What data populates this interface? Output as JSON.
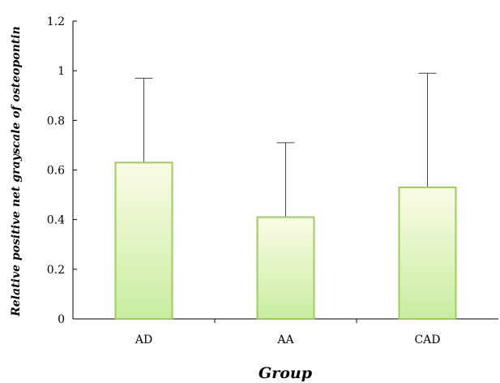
{
  "chart_data": {
    "type": "bar",
    "title": "",
    "xlabel": "Group",
    "ylabel": "Relative positive net grayscale of osteopontin",
    "categories": [
      "AD",
      "AA",
      "CAD"
    ],
    "series": [
      {
        "values": [
          0.63,
          0.41,
          0.53
        ],
        "error_upper": [
          0.97,
          0.71,
          0.99
        ]
      }
    ],
    "ylim": [
      0,
      1.2
    ],
    "yticks": [
      0,
      0.2,
      0.4,
      0.6,
      0.8,
      1,
      1.2
    ],
    "ytick_labels": [
      "0",
      "0.2",
      "0.4",
      "0.6",
      "0.8",
      "1",
      "1.2"
    ],
    "grid": false,
    "legend": "none",
    "colors": {
      "bar_top": "#fbfbe6",
      "bar_bottom": "#c8eda0",
      "bar_stroke": "#9ccc5a",
      "axis": "#000000",
      "error_bar": "#444444"
    }
  }
}
